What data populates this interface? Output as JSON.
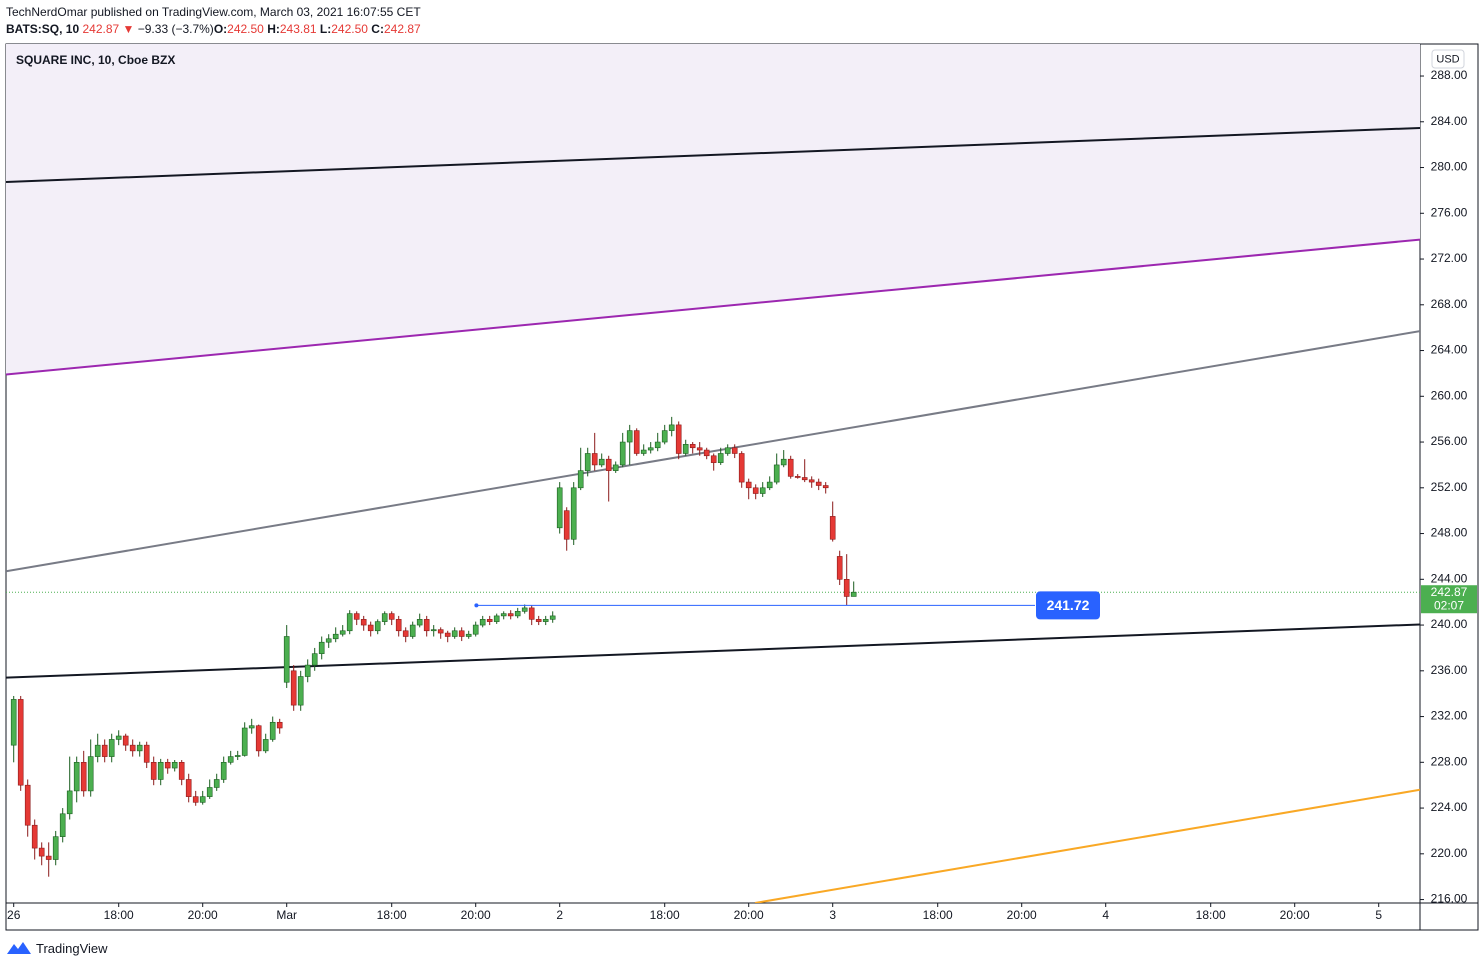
{
  "header": {
    "publisher": "TechNerdOmar published on TradingView.com, March 03, 2021 16:07:55 CET",
    "symbol": "BATS:SQ, 10",
    "last": "242.87",
    "arrow": "▼",
    "change": "−9.33 (−3.7%)",
    "o_label": "O:",
    "o": "242.50",
    "h_label": "H:",
    "h": "243.81",
    "l_label": "L:",
    "l": "242.50",
    "c_label": "C:",
    "c": "242.87"
  },
  "footer": {
    "brand": "TradingView"
  },
  "chart_data": {
    "type": "candlestick",
    "title": "SQUARE INC, 10, Cboe BZX",
    "currency": "USD",
    "up_color": "#4caf50",
    "down_color": "#e53935",
    "grid": false,
    "xlim": [
      -1.1,
      200.9
    ],
    "ylim": [
      215.7,
      290.8
    ],
    "yticks": [
      {
        "value": 216,
        "label": "216.00"
      },
      {
        "value": 220,
        "label": "220.00"
      },
      {
        "value": 224,
        "label": "224.00"
      },
      {
        "value": 228,
        "label": "228.00"
      },
      {
        "value": 232,
        "label": "232.00"
      },
      {
        "value": 236,
        "label": "236.00"
      },
      {
        "value": 240,
        "label": "240.00"
      },
      {
        "value": 244,
        "label": "244.00"
      },
      {
        "value": 248,
        "label": "248.00"
      },
      {
        "value": 252,
        "label": "252.00"
      },
      {
        "value": 256,
        "label": "256.00"
      },
      {
        "value": 260,
        "label": "260.00"
      },
      {
        "value": 264,
        "label": "264.00"
      },
      {
        "value": 268,
        "label": "268.00"
      },
      {
        "value": 272,
        "label": "272.00"
      },
      {
        "value": 276,
        "label": "276.00"
      },
      {
        "value": 280,
        "label": "280.00"
      },
      {
        "value": 284,
        "label": "284.00"
      },
      {
        "value": 288,
        "label": "288.00"
      }
    ],
    "xticks": [
      {
        "value": 0,
        "label": "26"
      },
      {
        "value": 15,
        "label": "18:00"
      },
      {
        "value": 27,
        "label": "20:00"
      },
      {
        "value": 39,
        "label": "Mar"
      },
      {
        "value": 54,
        "label": "18:00"
      },
      {
        "value": 66,
        "label": "20:00"
      },
      {
        "value": 78,
        "label": "2"
      },
      {
        "value": 93,
        "label": "18:00"
      },
      {
        "value": 105,
        "label": "20:00"
      },
      {
        "value": 117,
        "label": "3"
      },
      {
        "value": 132,
        "label": "18:00"
      },
      {
        "value": 144,
        "label": "20:00"
      },
      {
        "value": 156,
        "label": "4"
      },
      {
        "value": 171,
        "label": "18:00"
      },
      {
        "value": 183,
        "label": "20:00"
      },
      {
        "value": 195,
        "label": "5"
      }
    ],
    "x": [
      0,
      1,
      2,
      3,
      4,
      5,
      6,
      7,
      8,
      9,
      10,
      11,
      12,
      13,
      14,
      15,
      16,
      17,
      18,
      19,
      20,
      21,
      22,
      23,
      24,
      25,
      26,
      27,
      28,
      29,
      30,
      31,
      32,
      33,
      34,
      35,
      36,
      37,
      38,
      39,
      40,
      41,
      42,
      43,
      44,
      45,
      46,
      47,
      48,
      49,
      50,
      51,
      52,
      53,
      54,
      55,
      56,
      57,
      58,
      59,
      60,
      61,
      62,
      63,
      64,
      65,
      66,
      67,
      68,
      69,
      70,
      71,
      72,
      73,
      74,
      75,
      76,
      77,
      78,
      79,
      80,
      81,
      82,
      83,
      84,
      85,
      86,
      87,
      88,
      89,
      90,
      91,
      92,
      93,
      94,
      95,
      96,
      97,
      98,
      99,
      100,
      101,
      102,
      103,
      104,
      105,
      106,
      107,
      108,
      109,
      110,
      111,
      112,
      113,
      114,
      115,
      116,
      117,
      118,
      119,
      120
    ],
    "open": [
      229.5,
      233.5,
      226.0,
      222.5,
      220.5,
      219.8,
      219.5,
      221.5,
      223.5,
      225.5,
      228.0,
      225.5,
      228.5,
      229.5,
      228.5,
      230.0,
      230.3,
      229.5,
      229.0,
      229.5,
      228.0,
      226.5,
      228.0,
      227.5,
      228.0,
      226.5,
      225.0,
      224.5,
      225.0,
      225.8,
      226.5,
      228.0,
      228.5,
      228.6,
      231.0,
      231.2,
      229.0,
      230.0,
      231.5,
      235.0,
      236.0,
      233.0,
      235.5,
      236.5,
      237.5,
      238.5,
      238.8,
      239.2,
      239.5,
      241.0,
      240.5,
      240.0,
      239.5,
      240.3,
      241.0,
      240.5,
      239.5,
      239.0,
      240.0,
      240.5,
      239.5,
      239.6,
      239.3,
      239.0,
      239.5,
      239.0,
      239.2,
      240.0,
      240.5,
      240.3,
      240.8,
      241.0,
      240.8,
      241.2,
      241.5,
      240.5,
      240.3,
      240.5,
      248.5,
      250.0,
      247.5,
      252.0,
      253.5,
      255.0,
      254.0,
      254.5,
      253.5,
      254.0,
      256.0,
      257.0,
      255.0,
      255.3,
      255.5,
      256.0,
      257.0,
      257.5,
      255.0,
      255.8,
      255.5,
      255.3,
      254.8,
      254.2,
      255.0,
      255.5,
      255.0,
      252.5,
      252.0,
      251.5,
      252.0,
      252.5,
      254.0,
      254.5,
      253.0,
      252.9,
      252.7,
      252.5,
      252.2,
      249.5,
      246.0,
      244.0,
      242.5
    ],
    "high": [
      233.8,
      233.8,
      226.5,
      223.0,
      221.0,
      221.0,
      222.0,
      224.0,
      228.5,
      228.5,
      229.0,
      230.0,
      230.5,
      230.0,
      230.5,
      230.8,
      230.5,
      230.0,
      229.8,
      229.8,
      228.5,
      228.3,
      228.3,
      228.2,
      228.2,
      227.0,
      225.5,
      225.5,
      226.5,
      227.0,
      228.5,
      229.0,
      229.0,
      231.5,
      231.8,
      231.3,
      230.5,
      232.0,
      231.8,
      240.0,
      236.5,
      236.0,
      237.0,
      238.0,
      239.0,
      239.2,
      239.8,
      240.0,
      241.3,
      241.2,
      240.8,
      240.3,
      240.5,
      241.2,
      241.2,
      240.8,
      239.8,
      240.3,
      241.0,
      240.8,
      240.0,
      239.8,
      239.5,
      239.8,
      239.8,
      239.5,
      240.3,
      240.8,
      240.8,
      241.0,
      241.2,
      241.3,
      241.5,
      241.8,
      241.7,
      240.8,
      240.8,
      241.2,
      252.5,
      250.3,
      252.5,
      255.5,
      255.5,
      256.8,
      255.0,
      254.8,
      254.3,
      256.8,
      257.5,
      257.2,
      255.8,
      256.0,
      256.8,
      257.5,
      258.2,
      257.8,
      256.2,
      256.0,
      256.0,
      255.5,
      255.0,
      255.5,
      255.8,
      255.8,
      255.2,
      252.8,
      252.3,
      252.5,
      253.0,
      255.0,
      255.3,
      254.8,
      253.2,
      254.5,
      253.0,
      252.8,
      252.5,
      250.8,
      246.5,
      246.2,
      243.81
    ],
    "low": [
      228.0,
      225.5,
      221.5,
      219.5,
      219.0,
      218.0,
      219.0,
      221.0,
      223.0,
      224.5,
      225.0,
      225.0,
      228.0,
      228.0,
      228.0,
      229.5,
      229.0,
      228.5,
      228.5,
      227.5,
      226.0,
      226.0,
      227.0,
      227.2,
      226.0,
      224.5,
      224.2,
      224.3,
      224.8,
      225.5,
      226.2,
      227.8,
      228.2,
      228.5,
      230.5,
      228.5,
      228.8,
      229.8,
      230.5,
      234.5,
      232.5,
      232.5,
      235.0,
      236.0,
      237.0,
      238.0,
      238.5,
      239.0,
      239.2,
      240.0,
      239.5,
      239.0,
      239.2,
      240.0,
      240.0,
      239.0,
      238.5,
      238.8,
      239.8,
      239.0,
      239.0,
      238.8,
      238.5,
      238.8,
      238.6,
      238.8,
      239.0,
      239.8,
      240.0,
      240.1,
      240.5,
      240.5,
      240.6,
      241.0,
      240.0,
      240.0,
      240.0,
      240.2,
      248.0,
      246.5,
      247.0,
      251.8,
      253.0,
      253.5,
      253.8,
      250.8,
      253.3,
      253.8,
      254.0,
      254.8,
      254.8,
      255.0,
      255.2,
      255.8,
      256.5,
      254.5,
      254.8,
      255.0,
      254.8,
      254.5,
      253.5,
      254.0,
      254.8,
      254.6,
      252.0,
      251.0,
      251.0,
      251.2,
      251.8,
      252.3,
      253.8,
      252.8,
      252.8,
      252.5,
      252.0,
      251.8,
      251.5,
      247.3,
      243.5,
      241.72,
      242.5
    ],
    "close": [
      233.5,
      226.0,
      222.5,
      220.5,
      219.8,
      219.5,
      221.5,
      223.5,
      225.5,
      228.0,
      225.5,
      228.5,
      229.5,
      228.5,
      230.0,
      230.3,
      229.5,
      229.0,
      229.5,
      228.0,
      226.5,
      228.0,
      227.5,
      228.0,
      226.5,
      225.0,
      224.5,
      225.0,
      225.8,
      226.5,
      228.0,
      228.5,
      228.6,
      231.0,
      231.2,
      229.0,
      230.0,
      231.5,
      231.0,
      239.0,
      233.0,
      235.5,
      236.5,
      237.5,
      238.5,
      238.8,
      239.2,
      239.5,
      241.0,
      240.5,
      240.0,
      239.5,
      240.3,
      241.0,
      240.5,
      239.5,
      239.0,
      240.0,
      240.5,
      239.5,
      239.6,
      239.3,
      239.0,
      239.5,
      239.0,
      239.2,
      240.0,
      240.5,
      240.3,
      240.8,
      241.0,
      240.8,
      241.2,
      241.5,
      240.5,
      240.3,
      240.5,
      240.8,
      252.0,
      247.5,
      252.0,
      253.5,
      255.0,
      254.0,
      254.5,
      253.5,
      254.0,
      256.0,
      257.0,
      255.0,
      255.3,
      255.5,
      256.0,
      257.0,
      257.5,
      255.0,
      255.8,
      255.5,
      255.3,
      254.8,
      254.2,
      255.0,
      255.5,
      255.0,
      252.5,
      252.0,
      251.5,
      252.0,
      252.5,
      254.0,
      254.5,
      253.0,
      252.9,
      252.7,
      252.5,
      252.2,
      252.0,
      247.5,
      244.0,
      242.5,
      242.87
    ],
    "trendlines": [
      {
        "color": "#131722",
        "x": [
          -1.1,
          200.9
        ],
        "y": [
          278.74,
          283.46
        ]
      },
      {
        "color": "#9c27b0",
        "x": [
          -1.1,
          200.9
        ],
        "y": [
          261.9,
          273.7
        ],
        "fill_above": "#f3eff8"
      },
      {
        "color": "#787b86",
        "x": [
          -1.1,
          200.9
        ],
        "y": [
          244.7,
          265.7
        ]
      },
      {
        "color": "#131722",
        "x": [
          -1.1,
          200.9
        ],
        "y": [
          235.4,
          240.05
        ]
      },
      {
        "color": "#f9a825",
        "x": [
          105.9,
          200.9
        ],
        "y": [
          215.7,
          225.6
        ]
      }
    ],
    "hline": {
      "color": "#2962ff",
      "x": [
        66.1,
        145.9
      ],
      "value": 241.72
    },
    "last_price": 242.87,
    "countdown": "02:07"
  }
}
